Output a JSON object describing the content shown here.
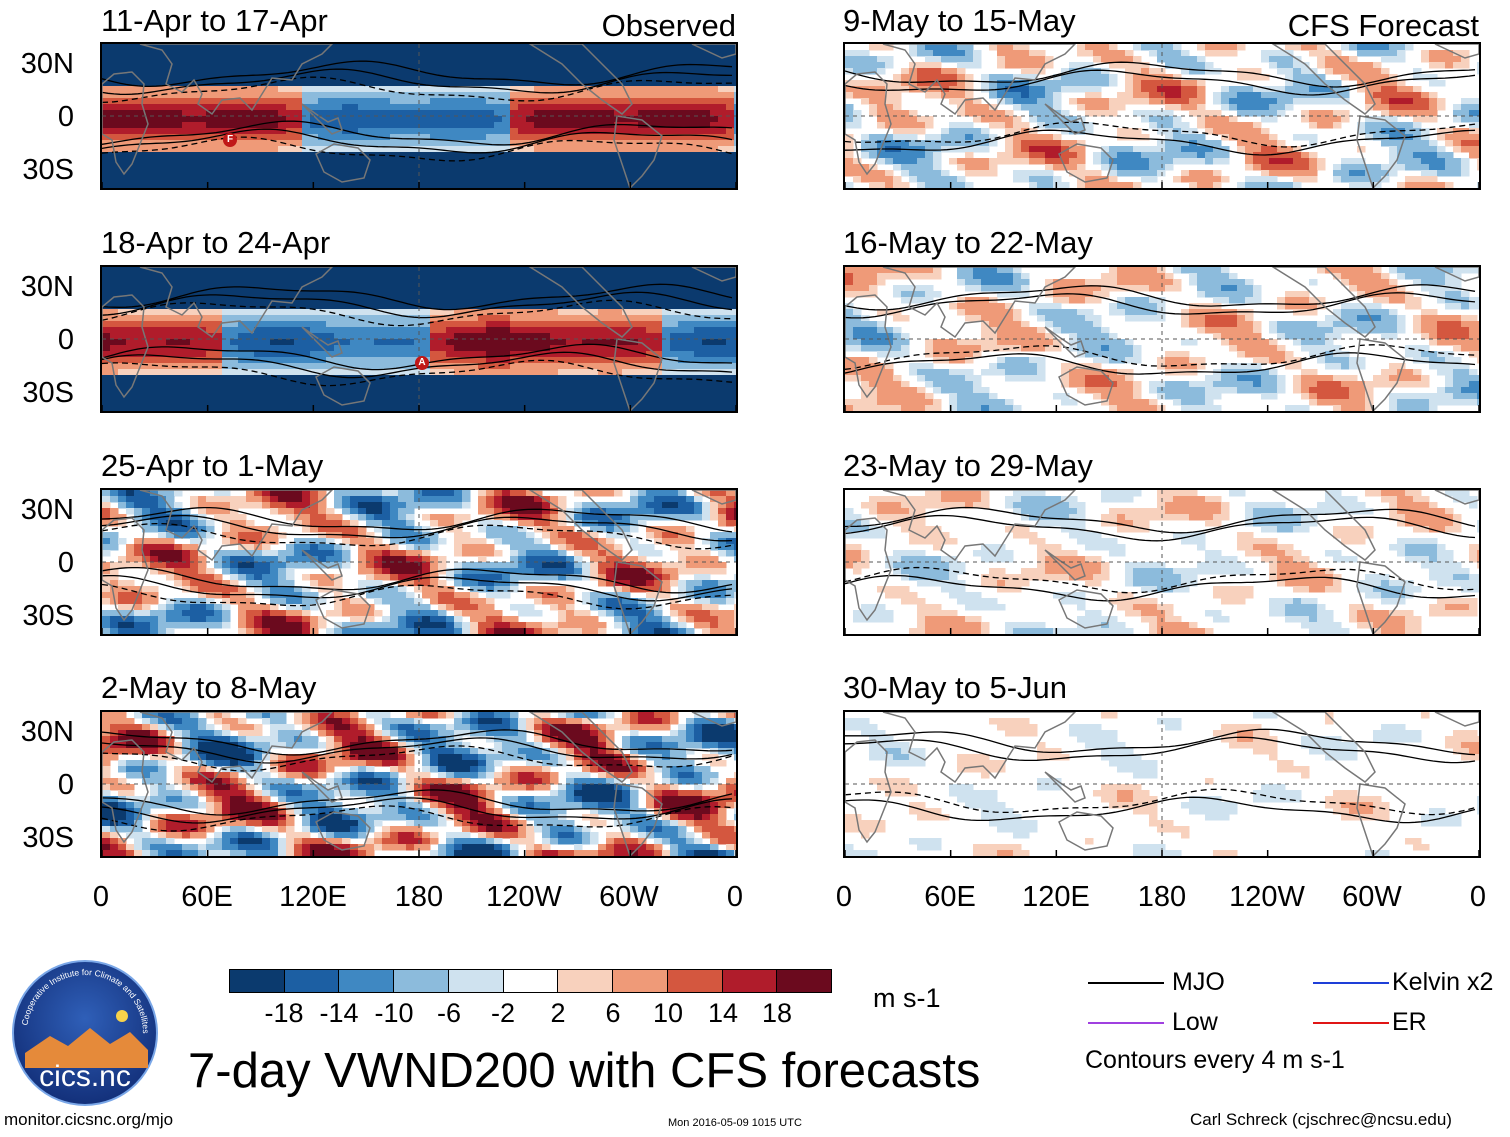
{
  "panels": [
    {
      "title": "11-Apr to 17-Apr",
      "corner": "Observed",
      "kind": "obs",
      "intensity": 2.4
    },
    {
      "title": "18-Apr to 24-Apr",
      "kind": "obs",
      "intensity": 2.6
    },
    {
      "title": "25-Apr to 1-May",
      "kind": "obs",
      "intensity": 1.4
    },
    {
      "title": "2-May to 8-May",
      "kind": "obs",
      "intensity": 1.8
    },
    {
      "title": "9-May to 15-May",
      "corner": "CFS Forecast",
      "kind": "fcst",
      "intensity": 0.9
    },
    {
      "title": "16-May to 22-May",
      "kind": "fcst",
      "intensity": 0.7
    },
    {
      "title": "23-May to 29-May",
      "kind": "fcst",
      "intensity": 0.5
    },
    {
      "title": "30-May to 5-Jun",
      "kind": "fcst",
      "intensity": 0.3
    }
  ],
  "y_axis": [
    "30N",
    "0",
    "30S"
  ],
  "x_axis": [
    "0",
    "60E",
    "120E",
    "180",
    "120W",
    "60W",
    "0"
  ],
  "colorbar": {
    "units": "m s-1",
    "labels": [
      "-18",
      "-14",
      "-10",
      "-6",
      "-2",
      "2",
      "6",
      "10",
      "14",
      "18"
    ],
    "colors": [
      "#0b3a6e",
      "#1c5fa3",
      "#3f88c2",
      "#8cbbdc",
      "#cfe2ef",
      "#ffffff",
      "#f8d1bd",
      "#ef9a78",
      "#d4573f",
      "#b01c2b",
      "#6b0a1e"
    ]
  },
  "title": "7-day VWND200 with CFS forecasts",
  "legend": {
    "items": [
      {
        "label": "MJO",
        "color": "#000000"
      },
      {
        "label": "Kelvin x2",
        "color": "#1e3fd8"
      },
      {
        "label": "Low",
        "color": "#a040e0"
      },
      {
        "label": "ER",
        "color": "#e01515"
      }
    ],
    "note": "Contours every 4 m s-1"
  },
  "markers": {
    "panel1": "F",
    "panel2": "A"
  },
  "logo": {
    "text": "cics.nc",
    "ring_text": "Cooperative Institute for Climate and Satellites"
  },
  "footer": {
    "left": "monitor.cicsnc.org/mjo",
    "center": "Mon 2016-05-09 1015 UTC",
    "right": "Carl Schreck (cjschrec@ncsu.edu)"
  }
}
